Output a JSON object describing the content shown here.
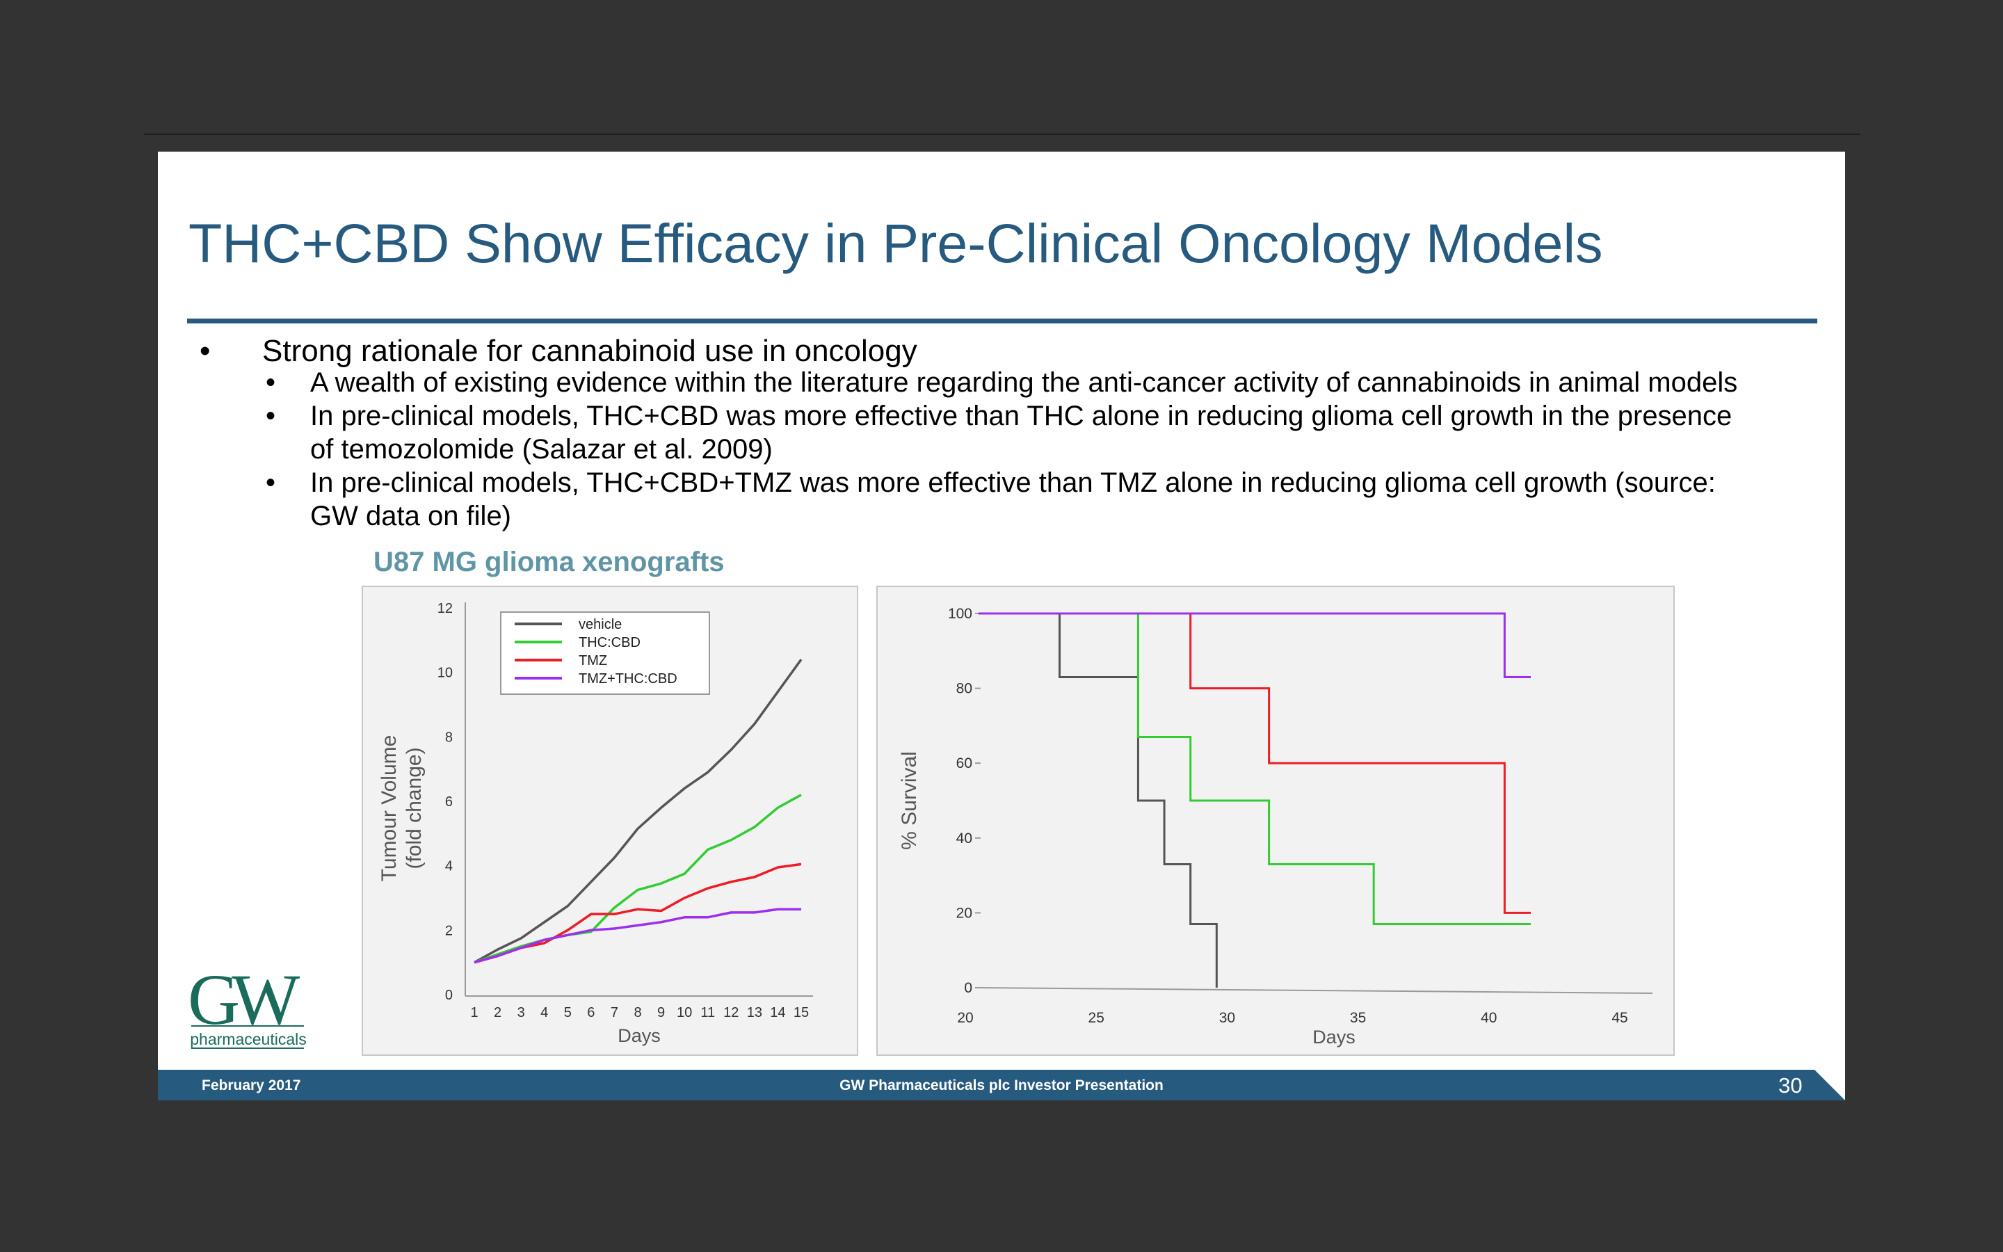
{
  "slide": {
    "title": "THC+CBD Show Efficacy in Pre-Clinical Oncology Models",
    "bullets": {
      "main": "Strong rationale for cannabinoid use in oncology",
      "sub": [
        [
          "A wealth of existing evidence within the literature regarding the anti-cancer activity of cannabinoids in animal models"
        ],
        [
          "In pre-clinical models, THC+CBD was more effective than THC alone in reducing glioma cell growth in the presence",
          "of temozolomide (Salazar et al. 2009)"
        ],
        [
          "In pre-clinical models, THC+CBD+TMZ was more effective than TMZ alone in reducing glioma cell growth (source:",
          "GW data on file)"
        ]
      ]
    },
    "figure_heading": "U87 MG glioma xenografts"
  },
  "logo": {
    "letters": "GW",
    "word": "pharmaceuticals"
  },
  "footer": {
    "date": "February 2017",
    "center": "GW Pharmaceuticals plc Investor Presentation",
    "page": "30"
  },
  "colors": {
    "title": "#275a7f",
    "footer_bg": "#275a7f",
    "fig_heading": "#5f95a5",
    "vehicle": "#555555",
    "thc_cbd": "#33cc33",
    "tmz": "#ee1c24",
    "tmz_thc_cbd": "#9b30ef"
  },
  "chart_data": [
    {
      "type": "line",
      "title": "",
      "xlabel": "Days",
      "ylabel": [
        "Tumour Volume",
        "(fold change)"
      ],
      "x": [
        1,
        2,
        3,
        4,
        5,
        6,
        7,
        8,
        9,
        10,
        11,
        12,
        13,
        14,
        15
      ],
      "xlim": [
        1,
        15
      ],
      "ylim": [
        0,
        12
      ],
      "yticks": [
        0,
        2,
        4,
        6,
        8,
        10,
        12
      ],
      "legend_position": "top-left",
      "grid": false,
      "series": [
        {
          "name": "vehicle",
          "color": "#555555",
          "values": [
            1.0,
            1.4,
            1.75,
            2.25,
            2.75,
            3.5,
            4.25,
            5.15,
            5.8,
            6.4,
            6.9,
            7.6,
            8.4,
            9.4,
            10.4
          ]
        },
        {
          "name": "THC:CBD",
          "color": "#33cc33",
          "values": [
            1.0,
            1.25,
            1.5,
            1.7,
            1.85,
            1.95,
            2.7,
            3.25,
            3.45,
            3.75,
            4.5,
            4.8,
            5.2,
            5.8,
            6.2
          ]
        },
        {
          "name": "TMZ",
          "color": "#ee1c24",
          "values": [
            1.0,
            1.2,
            1.45,
            1.6,
            2.0,
            2.5,
            2.5,
            2.65,
            2.6,
            3.0,
            3.3,
            3.5,
            3.65,
            3.95,
            4.05
          ]
        },
        {
          "name": "TMZ+THC:CBD",
          "color": "#9b30ef",
          "values": [
            1.0,
            1.2,
            1.45,
            1.7,
            1.85,
            2.0,
            2.05,
            2.15,
            2.25,
            2.4,
            2.4,
            2.55,
            2.55,
            2.65,
            2.65
          ]
        }
      ]
    },
    {
      "type": "line",
      "subtype": "step",
      "title": "",
      "xlabel": "Days",
      "ylabel": "% Survival",
      "xlim": [
        20,
        45
      ],
      "xticks": [
        20,
        25,
        30,
        35,
        40,
        45
      ],
      "ylim": [
        0,
        100
      ],
      "yticks": [
        0,
        20,
        40,
        60,
        80,
        100
      ],
      "grid": false,
      "series": [
        {
          "name": "vehicle",
          "color": "#555555",
          "points": [
            [
              20.5,
              100
            ],
            [
              23.6,
              100
            ],
            [
              23.6,
              83
            ],
            [
              26.6,
              83
            ],
            [
              26.6,
              50
            ],
            [
              27.6,
              50
            ],
            [
              27.6,
              33
            ],
            [
              28.6,
              33
            ],
            [
              28.6,
              17
            ],
            [
              29.6,
              17
            ],
            [
              29.6,
              0
            ]
          ]
        },
        {
          "name": "THC:CBD",
          "color": "#33cc33",
          "points": [
            [
              26.6,
              100
            ],
            [
              26.6,
              67
            ],
            [
              28.6,
              67
            ],
            [
              28.6,
              50
            ],
            [
              31.6,
              50
            ],
            [
              31.6,
              33
            ],
            [
              35.6,
              33
            ],
            [
              35.6,
              17
            ],
            [
              41.6,
              17
            ]
          ]
        },
        {
          "name": "TMZ",
          "color": "#ee1c24",
          "points": [
            [
              28.6,
              100
            ],
            [
              28.6,
              80
            ],
            [
              31.6,
              80
            ],
            [
              31.6,
              60
            ],
            [
              40.6,
              60
            ],
            [
              40.6,
              20
            ],
            [
              41.6,
              20
            ]
          ]
        },
        {
          "name": "TMZ+THC:CBD",
          "color": "#9b30ef",
          "points": [
            [
              20.5,
              100
            ],
            [
              40.6,
              100
            ],
            [
              40.6,
              83
            ],
            [
              41.6,
              83
            ]
          ]
        }
      ]
    }
  ]
}
